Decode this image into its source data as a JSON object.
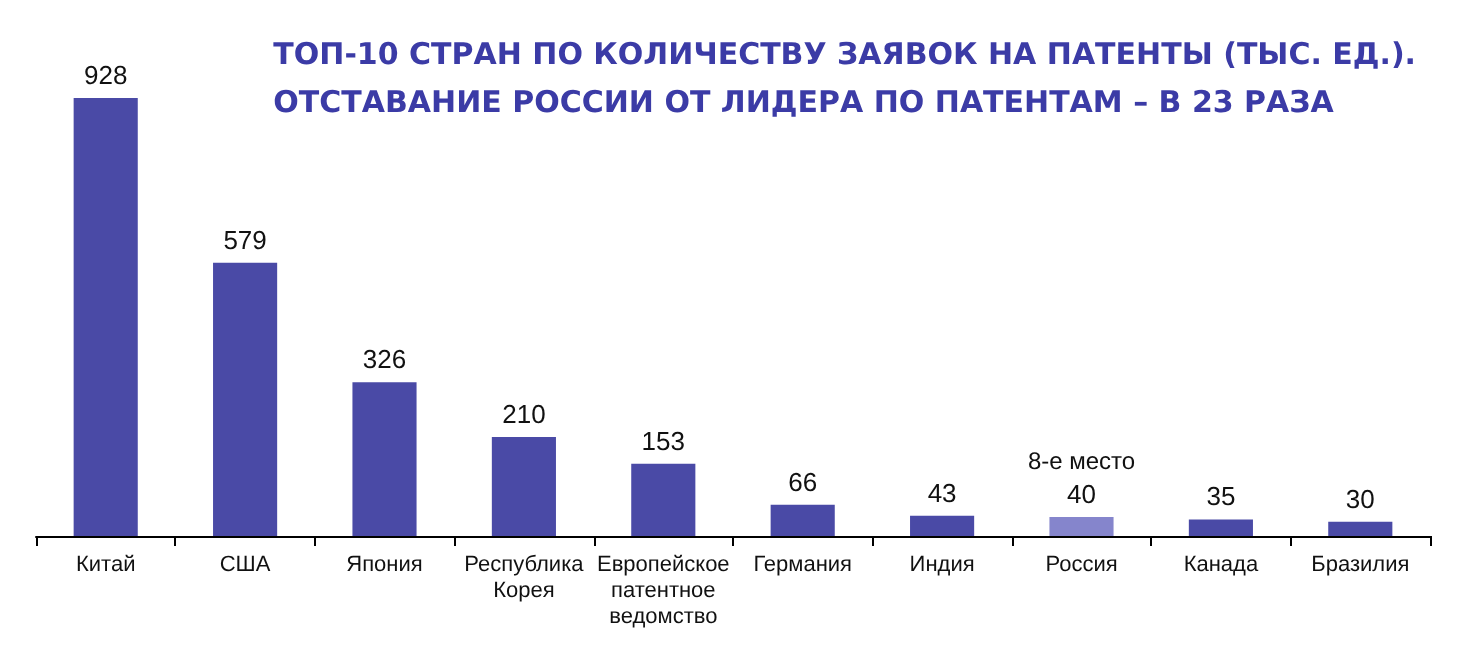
{
  "chart_data": {
    "type": "bar",
    "title": "ТОП-10 СТРАН ПО КОЛИЧЕСТВУ ЗАЯВОК НА ПАТЕНТЫ (ТЫС. ЕД.).\nОТСТАВАНИЕ РОССИИ ОТ ЛИДЕРА ПО ПАТЕНТАМ – В 23 РАЗА",
    "categories": [
      "Китай",
      "США",
      "Япония",
      "Республика\nКорея",
      "Европейское\nпатентное\nведомство",
      "Германия",
      "Индия",
      "Россия",
      "Канада",
      "Бразилия"
    ],
    "values": [
      928,
      579,
      326,
      210,
      153,
      66,
      43,
      40,
      35,
      30
    ],
    "colors": [
      "#4a4aa6",
      "#4a4aa6",
      "#4a4aa6",
      "#4a4aa6",
      "#4a4aa6",
      "#4a4aa6",
      "#4a4aa6",
      "#8585cc",
      "#4a4aa6",
      "#4a4aa6"
    ],
    "data_labels": true,
    "annotations": [
      {
        "text": "8-е место",
        "x": "Россия",
        "y": 40
      }
    ]
  }
}
